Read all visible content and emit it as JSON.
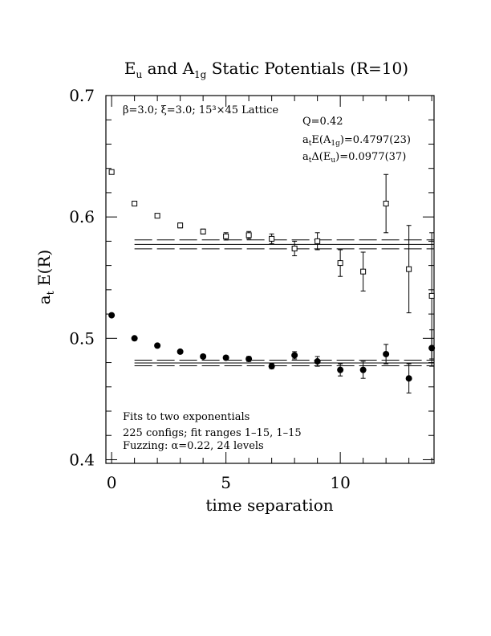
{
  "chart_data": {
    "type": "scatter",
    "title": {
      "prefix": "E",
      "sub1": "u",
      "mid": " and A",
      "sub2": "1g",
      "suffix": " Static Potentials (R=10)"
    },
    "xlabel": "time separation",
    "ylabel": {
      "main": "a",
      "sub": "t",
      "rest": " E(R)"
    },
    "xlim": [
      -0.25,
      14.1
    ],
    "ylim": [
      0.397,
      0.7
    ],
    "x_ticks": [
      0,
      5,
      10
    ],
    "y_ticks": [
      "0.4",
      "0.5",
      "0.6",
      "0.7"
    ],
    "annotations": {
      "lattice": "β=3.0; ξ=3.0; 15³×45 Lattice",
      "q": "Q=0.42",
      "e_fit": {
        "pre": "a",
        "sub1": "t",
        "mid": "E(A",
        "sub2": "1g",
        "post": ")=0.4797(23)"
      },
      "delta_fit": {
        "pre": "a",
        "sub1": "t",
        "mid": "Δ(E",
        "sub2": "u",
        "post": ")=0.0977(37)"
      },
      "fits": "Fits to two exponentials",
      "configs": "225 configs; fit ranges 1–15, 1–15",
      "fuzzing": "Fuzzing: α=0.22, 24 levels"
    },
    "series": [
      {
        "marker": "open-square",
        "points": [
          {
            "x": 0,
            "y": 0.637,
            "err": 0.001
          },
          {
            "x": 1,
            "y": 0.611,
            "err": 0.0015
          },
          {
            "x": 2,
            "y": 0.601,
            "err": 0.0015
          },
          {
            "x": 3,
            "y": 0.593,
            "err": 0.002
          },
          {
            "x": 4,
            "y": 0.588,
            "err": 0.002
          },
          {
            "x": 5,
            "y": 0.584,
            "err": 0.003
          },
          {
            "x": 6,
            "y": 0.585,
            "err": 0.003
          },
          {
            "x": 7,
            "y": 0.582,
            "err": 0.004
          },
          {
            "x": 8,
            "y": 0.574,
            "err": 0.006
          },
          {
            "x": 9,
            "y": 0.58,
            "err": 0.007
          },
          {
            "x": 10,
            "y": 0.562,
            "err": 0.011
          },
          {
            "x": 11,
            "y": 0.555,
            "err": 0.016
          },
          {
            "x": 12,
            "y": 0.611,
            "err": 0.024
          },
          {
            "x": 13,
            "y": 0.557,
            "err": 0.036
          },
          {
            "x": 14,
            "y": 0.535,
            "err": 0.052
          }
        ]
      },
      {
        "marker": "filled-circle",
        "points": [
          {
            "x": 0,
            "y": 0.519,
            "err": 0.0
          },
          {
            "x": 1,
            "y": 0.5,
            "err": 0.001
          },
          {
            "x": 2,
            "y": 0.494,
            "err": 0.001
          },
          {
            "x": 3,
            "y": 0.489,
            "err": 0.001
          },
          {
            "x": 4,
            "y": 0.485,
            "err": 0.0015
          },
          {
            "x": 5,
            "y": 0.484,
            "err": 0.0015
          },
          {
            "x": 6,
            "y": 0.483,
            "err": 0.002
          },
          {
            "x": 7,
            "y": 0.477,
            "err": 0.002
          },
          {
            "x": 8,
            "y": 0.486,
            "err": 0.003
          },
          {
            "x": 9,
            "y": 0.481,
            "err": 0.004
          },
          {
            "x": 10,
            "y": 0.474,
            "err": 0.005
          },
          {
            "x": 11,
            "y": 0.474,
            "err": 0.007
          },
          {
            "x": 12,
            "y": 0.487,
            "err": 0.008
          },
          {
            "x": 13,
            "y": 0.467,
            "err": 0.012
          },
          {
            "x": 14,
            "y": 0.492,
            "err": 0.015
          }
        ]
      }
    ],
    "fit_bands": [
      {
        "center": 0.5774,
        "upper": 0.5811,
        "lower": 0.5737,
        "x_start": 1
      },
      {
        "center": 0.4797,
        "upper": 0.482,
        "lower": 0.4774,
        "x_start": 1
      }
    ]
  }
}
